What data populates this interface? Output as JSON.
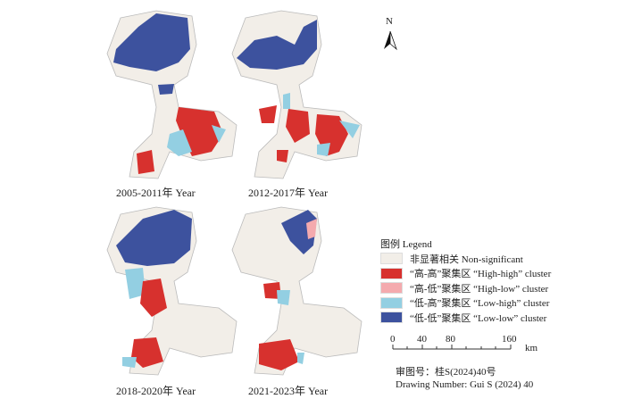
{
  "panels": [
    {
      "caption": "2005-2011年 Year"
    },
    {
      "caption": "2012-2017年 Year"
    },
    {
      "caption": "2018-2020年 Year"
    },
    {
      "caption": "2021-2023年 Year"
    }
  ],
  "north_arrow": {
    "label": "N"
  },
  "legend": {
    "title": "图例  Legend",
    "items": [
      {
        "label": "非显著相关 Non-significant",
        "color": "#f2eee8"
      },
      {
        "label": "“高-高”聚集区  “High-high” cluster",
        "color": "#d7312e"
      },
      {
        "label": "“高-低”聚集区  “High-low” cluster",
        "color": "#f4aaae"
      },
      {
        "label": "“低-高”聚集区  “Low-high” cluster",
        "color": "#93cfe2"
      },
      {
        "label": "“低-低”聚集区  “Low-low” cluster",
        "color": "#3d529e"
      }
    ]
  },
  "scale": {
    "ticks": [
      "0",
      "40",
      "80",
      "160"
    ],
    "unit": "km"
  },
  "approval": {
    "line1": "审图号：桂S(2024)40号",
    "line2": "Drawing Number: Gui S (2024) 40"
  }
}
